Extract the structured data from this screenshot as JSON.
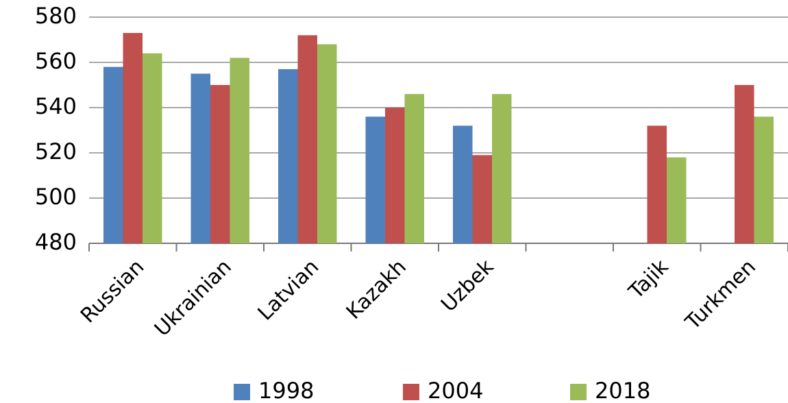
{
  "chart_data": {
    "type": "bar",
    "categories": [
      "Russian",
      "Ukrainian",
      "Latvian",
      "Kazakh",
      "Uzbek",
      null,
      "Tajik",
      "Turkmen"
    ],
    "series": [
      {
        "name": "1998",
        "color": "#4f81bd",
        "values": [
          558,
          555,
          557,
          536,
          532,
          null,
          null,
          null
        ]
      },
      {
        "name": "2004",
        "color": "#c0504d",
        "values": [
          573,
          550,
          572,
          540,
          519,
          null,
          532,
          550
        ]
      },
      {
        "name": "2018",
        "color": "#9bbb59",
        "values": [
          564,
          562,
          568,
          546,
          546,
          null,
          518,
          536
        ]
      }
    ],
    "ylim": [
      480,
      580
    ],
    "yticks": [
      480,
      500,
      520,
      540,
      560,
      580
    ],
    "grid": true,
    "legend": "bottom"
  }
}
